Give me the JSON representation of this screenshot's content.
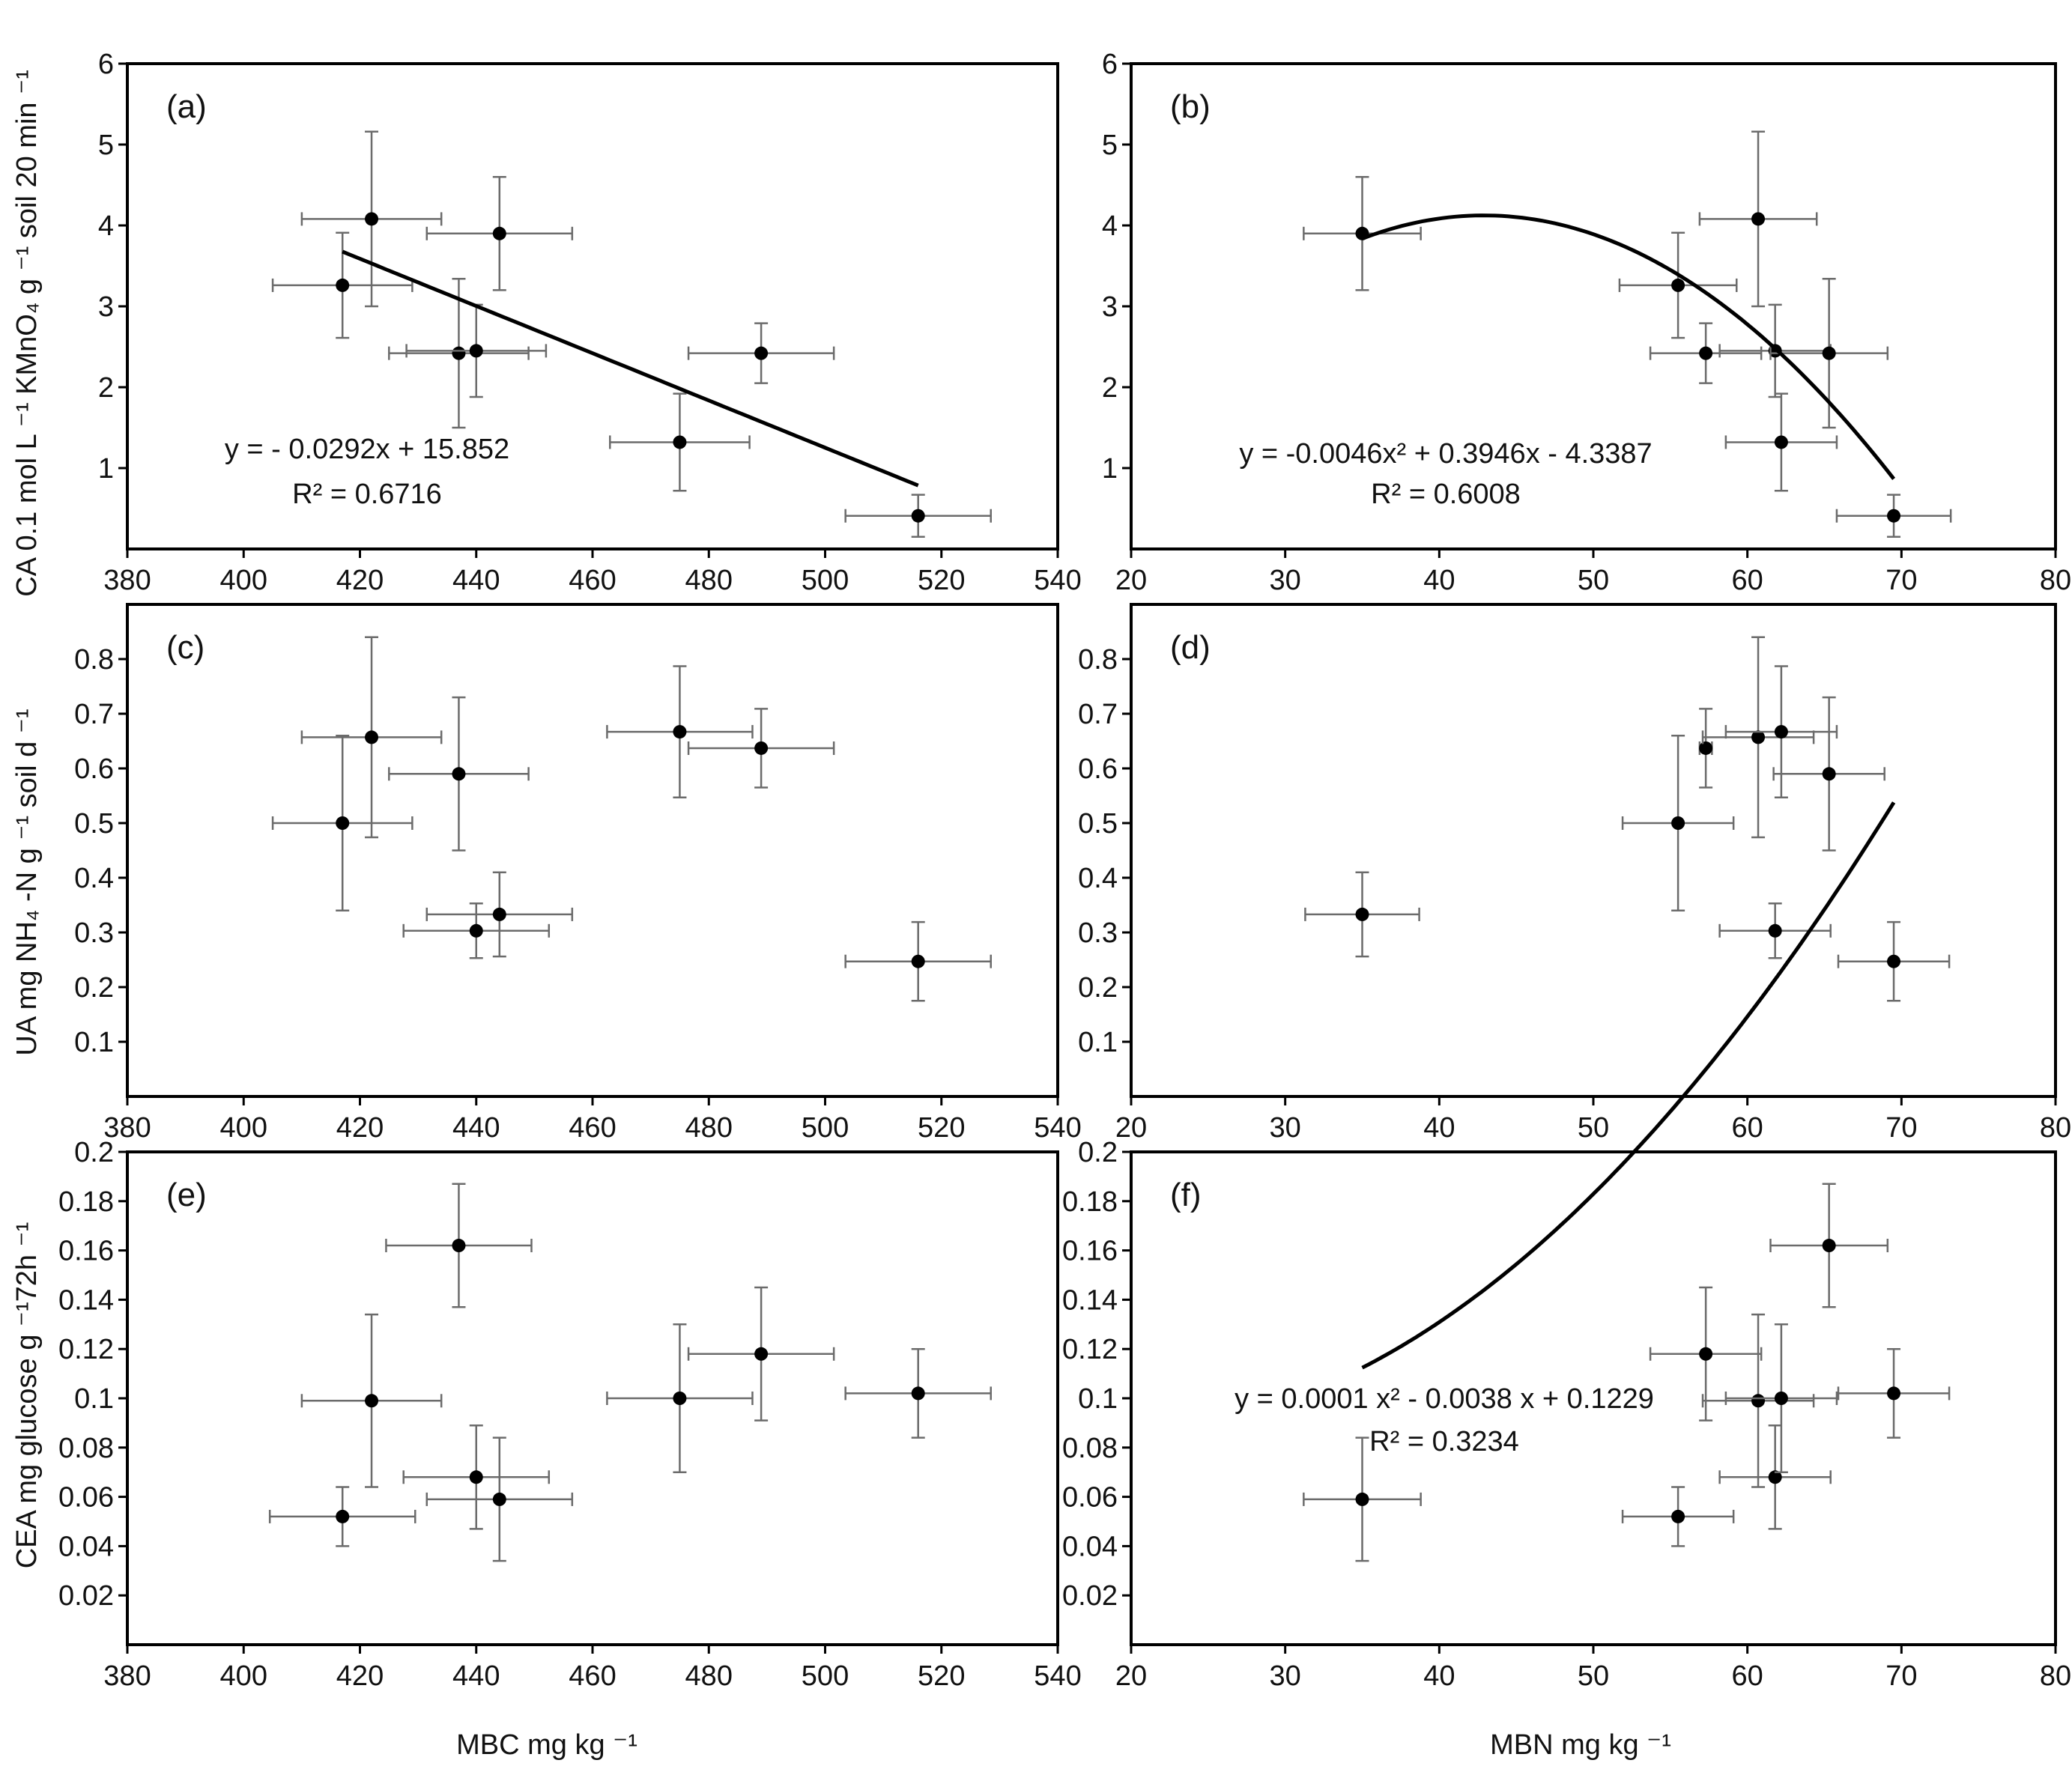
{
  "chart_data": [
    {
      "id": "a",
      "type": "scatter",
      "panel_label": "(a)",
      "xlim": [
        380,
        540
      ],
      "xticks": [
        "380",
        "400",
        "420",
        "440",
        "460",
        "480",
        "500",
        "520",
        "540"
      ],
      "ylim": [
        0,
        6
      ],
      "yticks": [
        "1",
        "2",
        "3",
        "4",
        "5",
        "6"
      ],
      "points": [
        {
          "x": 417,
          "y": 3.26,
          "xerr": 12,
          "yerr": 0.65
        },
        {
          "x": 422,
          "y": 4.08,
          "xerr": 12,
          "yerr": 1.08
        },
        {
          "x": 437,
          "y": 2.42,
          "xerr": 12,
          "yerr": 0.92
        },
        {
          "x": 440,
          "y": 2.45,
          "xerr": 12,
          "yerr": 0.57
        },
        {
          "x": 444,
          "y": 3.9,
          "xerr": 12.5,
          "yerr": 0.7
        },
        {
          "x": 475,
          "y": 1.32,
          "xerr": 12,
          "yerr": 0.6
        },
        {
          "x": 489,
          "y": 2.42,
          "xerr": 12.5,
          "yerr": 0.37
        },
        {
          "x": 516,
          "y": 0.41,
          "xerr": 12.5,
          "yerr": 0.26
        }
      ],
      "fit": {
        "kind": "linear",
        "coef": [
          15.852,
          -0.0292
        ],
        "xrange": [
          417,
          516
        ]
      },
      "equation": "y = - 0.0292x + 15.852",
      "r2": "R² = 0.6716"
    },
    {
      "id": "b",
      "type": "scatter",
      "panel_label": "(b)",
      "xlim": [
        20,
        80
      ],
      "xticks": [
        "20",
        "30",
        "40",
        "50",
        "60",
        "70",
        "80"
      ],
      "ylim": [
        0,
        6
      ],
      "yticks": [
        "1",
        "2",
        "3",
        "4",
        "5",
        "6"
      ],
      "points": [
        {
          "x": 35,
          "y": 3.9,
          "xerr": 3.8,
          "yerr": 0.7
        },
        {
          "x": 55.5,
          "y": 3.26,
          "xerr": 3.8,
          "yerr": 0.65
        },
        {
          "x": 57.3,
          "y": 2.42,
          "xerr": 3.6,
          "yerr": 0.37
        },
        {
          "x": 60.7,
          "y": 4.08,
          "xerr": 3.8,
          "yerr": 1.08
        },
        {
          "x": 61.8,
          "y": 2.45,
          "xerr": 3.6,
          "yerr": 0.57
        },
        {
          "x": 62.2,
          "y": 1.32,
          "xerr": 3.6,
          "yerr": 0.6
        },
        {
          "x": 65.3,
          "y": 2.42,
          "xerr": 3.8,
          "yerr": 0.92
        },
        {
          "x": 69.5,
          "y": 0.41,
          "xerr": 3.7,
          "yerr": 0.26
        }
      ],
      "fit": {
        "kind": "quadratic",
        "coef": [
          -4.3387,
          0.3946,
          -0.0046
        ],
        "xrange": [
          35,
          69.5
        ]
      },
      "equation": "y = -0.0046x² + 0.3946x - 4.3387",
      "r2": "R² = 0.6008"
    },
    {
      "id": "c",
      "type": "scatter",
      "panel_label": "(c)",
      "xlim": [
        380,
        540
      ],
      "xticks": [
        "380",
        "400",
        "420",
        "440",
        "460",
        "480",
        "500",
        "520",
        "540"
      ],
      "ylim": [
        0,
        0.9
      ],
      "yticks": [
        "0.1",
        "0.2",
        "0.3",
        "0.4",
        "0.5",
        "0.6",
        "0.7",
        "0.8"
      ],
      "points": [
        {
          "x": 417,
          "y": 0.5,
          "xerr": 12,
          "yerr": 0.16
        },
        {
          "x": 422,
          "y": 0.657,
          "xerr": 12,
          "yerr": 0.183
        },
        {
          "x": 437,
          "y": 0.59,
          "xerr": 12,
          "yerr": 0.14
        },
        {
          "x": 440,
          "y": 0.303,
          "xerr": 12.5,
          "yerr": 0.05
        },
        {
          "x": 444,
          "y": 0.333,
          "xerr": 12.5,
          "yerr": 0.077
        },
        {
          "x": 475,
          "y": 0.667,
          "xerr": 12.5,
          "yerr": 0.12
        },
        {
          "x": 489,
          "y": 0.637,
          "xerr": 12.5,
          "yerr": 0.072
        },
        {
          "x": 516,
          "y": 0.247,
          "xerr": 12.5,
          "yerr": 0.072
        }
      ],
      "fit": null,
      "equation": "",
      "r2": ""
    },
    {
      "id": "d",
      "type": "scatter",
      "panel_label": "(d)",
      "xlim": [
        20,
        80
      ],
      "xticks": [
        "20",
        "30",
        "40",
        "50",
        "60",
        "70",
        "80"
      ],
      "ylim": [
        0,
        0.9
      ],
      "yticks": [
        "0.1",
        "0.2",
        "0.3",
        "0.4",
        "0.5",
        "0.6",
        "0.7",
        "0.8"
      ],
      "points": [
        {
          "x": 35,
          "y": 0.333,
          "xerr": 3.7,
          "yerr": 0.077
        },
        {
          "x": 55.5,
          "y": 0.5,
          "xerr": 3.6,
          "yerr": 0.16
        },
        {
          "x": 57.3,
          "y": 0.637,
          "xerr": 0.4,
          "yerr": 0.072
        },
        {
          "x": 60.7,
          "y": 0.657,
          "xerr": 3.6,
          "yerr": 0.183
        },
        {
          "x": 61.8,
          "y": 0.303,
          "xerr": 3.6,
          "yerr": 0.05
        },
        {
          "x": 62.2,
          "y": 0.667,
          "xerr": 3.6,
          "yerr": 0.12
        },
        {
          "x": 65.3,
          "y": 0.59,
          "xerr": 3.6,
          "yerr": 0.14
        },
        {
          "x": 69.5,
          "y": 0.247,
          "xerr": 3.6,
          "yerr": 0.072
        }
      ],
      "fit": null,
      "equation": "",
      "r2": ""
    },
    {
      "id": "e",
      "type": "scatter",
      "panel_label": "(e)",
      "xlim": [
        380,
        540
      ],
      "xticks": [
        "380",
        "400",
        "420",
        "440",
        "460",
        "480",
        "500",
        "520",
        "540"
      ],
      "ylim": [
        0,
        0.2
      ],
      "yticks": [
        "0.02",
        "0.04",
        "0.06",
        "0.08",
        "0.1",
        "0.12",
        "0.14",
        "0.16",
        "0.18",
        "0.2"
      ],
      "points": [
        {
          "x": 417,
          "y": 0.052,
          "xerr": 12.5,
          "yerr": 0.012
        },
        {
          "x": 422,
          "y": 0.099,
          "xerr": 12,
          "yerr": 0.035
        },
        {
          "x": 437,
          "y": 0.162,
          "xerr": 12.5,
          "yerr": 0.025
        },
        {
          "x": 440,
          "y": 0.068,
          "xerr": 12.5,
          "yerr": 0.021
        },
        {
          "x": 444,
          "y": 0.059,
          "xerr": 12.5,
          "yerr": 0.025
        },
        {
          "x": 475,
          "y": 0.1,
          "xerr": 12.5,
          "yerr": 0.03
        },
        {
          "x": 489,
          "y": 0.118,
          "xerr": 12.5,
          "yerr": 0.027
        },
        {
          "x": 516,
          "y": 0.102,
          "xerr": 12.5,
          "yerr": 0.018
        }
      ],
      "fit": null,
      "equation": "",
      "r2": ""
    },
    {
      "id": "f",
      "type": "scatter",
      "panel_label": "(f)",
      "xlim": [
        20,
        80
      ],
      "xticks": [
        "20",
        "30",
        "40",
        "50",
        "60",
        "70",
        "80"
      ],
      "ylim": [
        0,
        0.2
      ],
      "yticks": [
        "0.02",
        "0.04",
        "0.06",
        "0.08",
        "0.1",
        "0.12",
        "0.14",
        "0.16",
        "0.18",
        "0.2"
      ],
      "points": [
        {
          "x": 35,
          "y": 0.059,
          "xerr": 3.8,
          "yerr": 0.025
        },
        {
          "x": 55.5,
          "y": 0.052,
          "xerr": 3.6,
          "yerr": 0.012
        },
        {
          "x": 57.3,
          "y": 0.118,
          "xerr": 3.6,
          "yerr": 0.027
        },
        {
          "x": 60.7,
          "y": 0.099,
          "xerr": 3.6,
          "yerr": 0.035
        },
        {
          "x": 61.8,
          "y": 0.068,
          "xerr": 3.6,
          "yerr": 0.021
        },
        {
          "x": 62.2,
          "y": 0.1,
          "xerr": 3.6,
          "yerr": 0.03
        },
        {
          "x": 65.3,
          "y": 0.162,
          "xerr": 3.8,
          "yerr": 0.025
        },
        {
          "x": 69.5,
          "y": 0.102,
          "xerr": 3.6,
          "yerr": 0.018
        }
      ],
      "fit": {
        "kind": "quadratic",
        "coef": [
          0.1229,
          -0.0038,
          0.0001
        ],
        "xrange": [
          35,
          69.5
        ]
      },
      "equation": "y = 0.0001 x² - 0.0038 x + 0.1229",
      "r2": "R² = 0.3234"
    }
  ],
  "axis_labels": {
    "y_row1": "CA 0.1 mol L ⁻¹ KMnO₄ g ⁻¹ soil 20 min ⁻¹",
    "y_row2": "UA mg NH₄ -N g ⁻¹ soil d ⁻¹",
    "y_row3": "CEA mg glucose g ⁻¹72h ⁻¹",
    "x_left": "MBC mg kg ⁻¹",
    "x_right": "MBN mg kg ⁻¹"
  }
}
